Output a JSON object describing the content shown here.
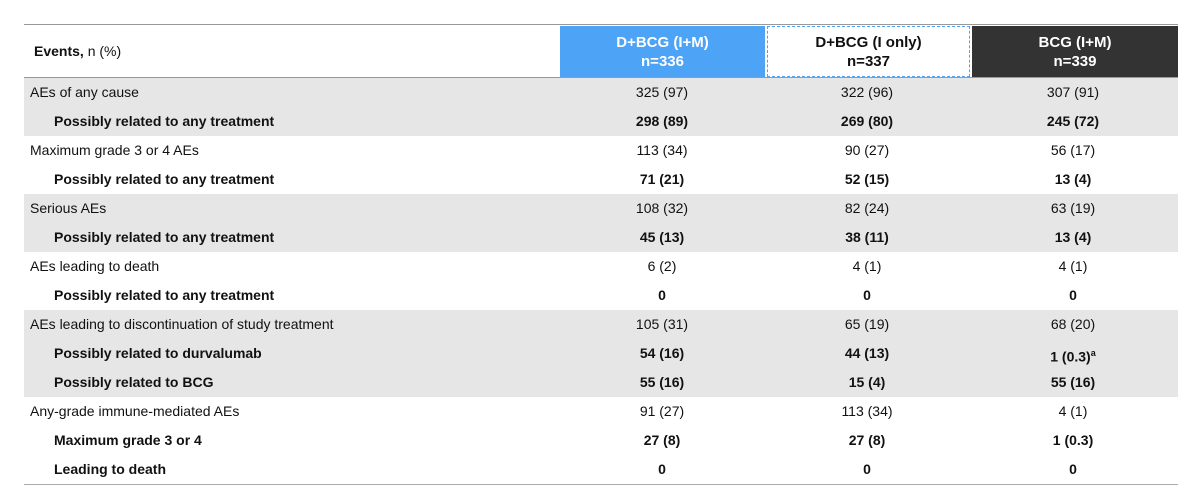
{
  "header": {
    "events_label": "Events,",
    "events_unit": "n (%)",
    "columns": [
      {
        "name": "D+BCG (I+M)",
        "n": "n=336"
      },
      {
        "name": "D+BCG (I only)",
        "n": "n=337"
      },
      {
        "name": "BCG (I+M)",
        "n": "n=339"
      }
    ]
  },
  "groups": [
    {
      "rows": [
        {
          "label": "AEs of any cause",
          "values": [
            "325 (97)",
            "322 (96)",
            "307 (91)"
          ]
        },
        {
          "label": "Possibly related to any treatment",
          "values": [
            "298 (89)",
            "269 (80)",
            "245 (72)"
          ]
        }
      ]
    },
    {
      "rows": [
        {
          "label": "Maximum grade 3 or 4 AEs",
          "values": [
            "113 (34)",
            "90 (27)",
            "56 (17)"
          ]
        },
        {
          "label": "Possibly related to any treatment",
          "values": [
            "71 (21)",
            "52 (15)",
            "13 (4)"
          ]
        }
      ]
    },
    {
      "rows": [
        {
          "label": "Serious AEs",
          "values": [
            "108 (32)",
            "82 (24)",
            "63 (19)"
          ]
        },
        {
          "label": "Possibly related to any treatment",
          "values": [
            "45 (13)",
            "38 (11)",
            "13 (4)"
          ]
        }
      ]
    },
    {
      "rows": [
        {
          "label": "AEs leading to death",
          "values": [
            "6 (2)",
            "4 (1)",
            "4 (1)"
          ]
        },
        {
          "label": "Possibly related to any treatment",
          "values": [
            "0",
            "0",
            "0"
          ]
        }
      ]
    },
    {
      "rows": [
        {
          "label": "AEs leading to discontinuation of study treatment",
          "values": [
            "105 (31)",
            "65 (19)",
            "68 (20)"
          ]
        },
        {
          "label": "Possibly related to durvalumab",
          "values": [
            "54 (16)",
            "44 (13)",
            {
              "text": "1 (0.3)",
              "sup": "a"
            }
          ]
        },
        {
          "label": "Possibly related to BCG",
          "values": [
            "55 (16)",
            "15 (4)",
            "55 (16)"
          ]
        }
      ]
    },
    {
      "rows": [
        {
          "label": "Any-grade immune-mediated AEs",
          "values": [
            "91 (27)",
            "113 (34)",
            "4 (1)"
          ]
        },
        {
          "label": "Maximum grade 3 or 4",
          "values": [
            "27 (8)",
            "27 (8)",
            "1 (0.3)"
          ]
        },
        {
          "label": "Leading to death",
          "values": [
            "0",
            "0",
            "0"
          ]
        }
      ]
    }
  ]
}
